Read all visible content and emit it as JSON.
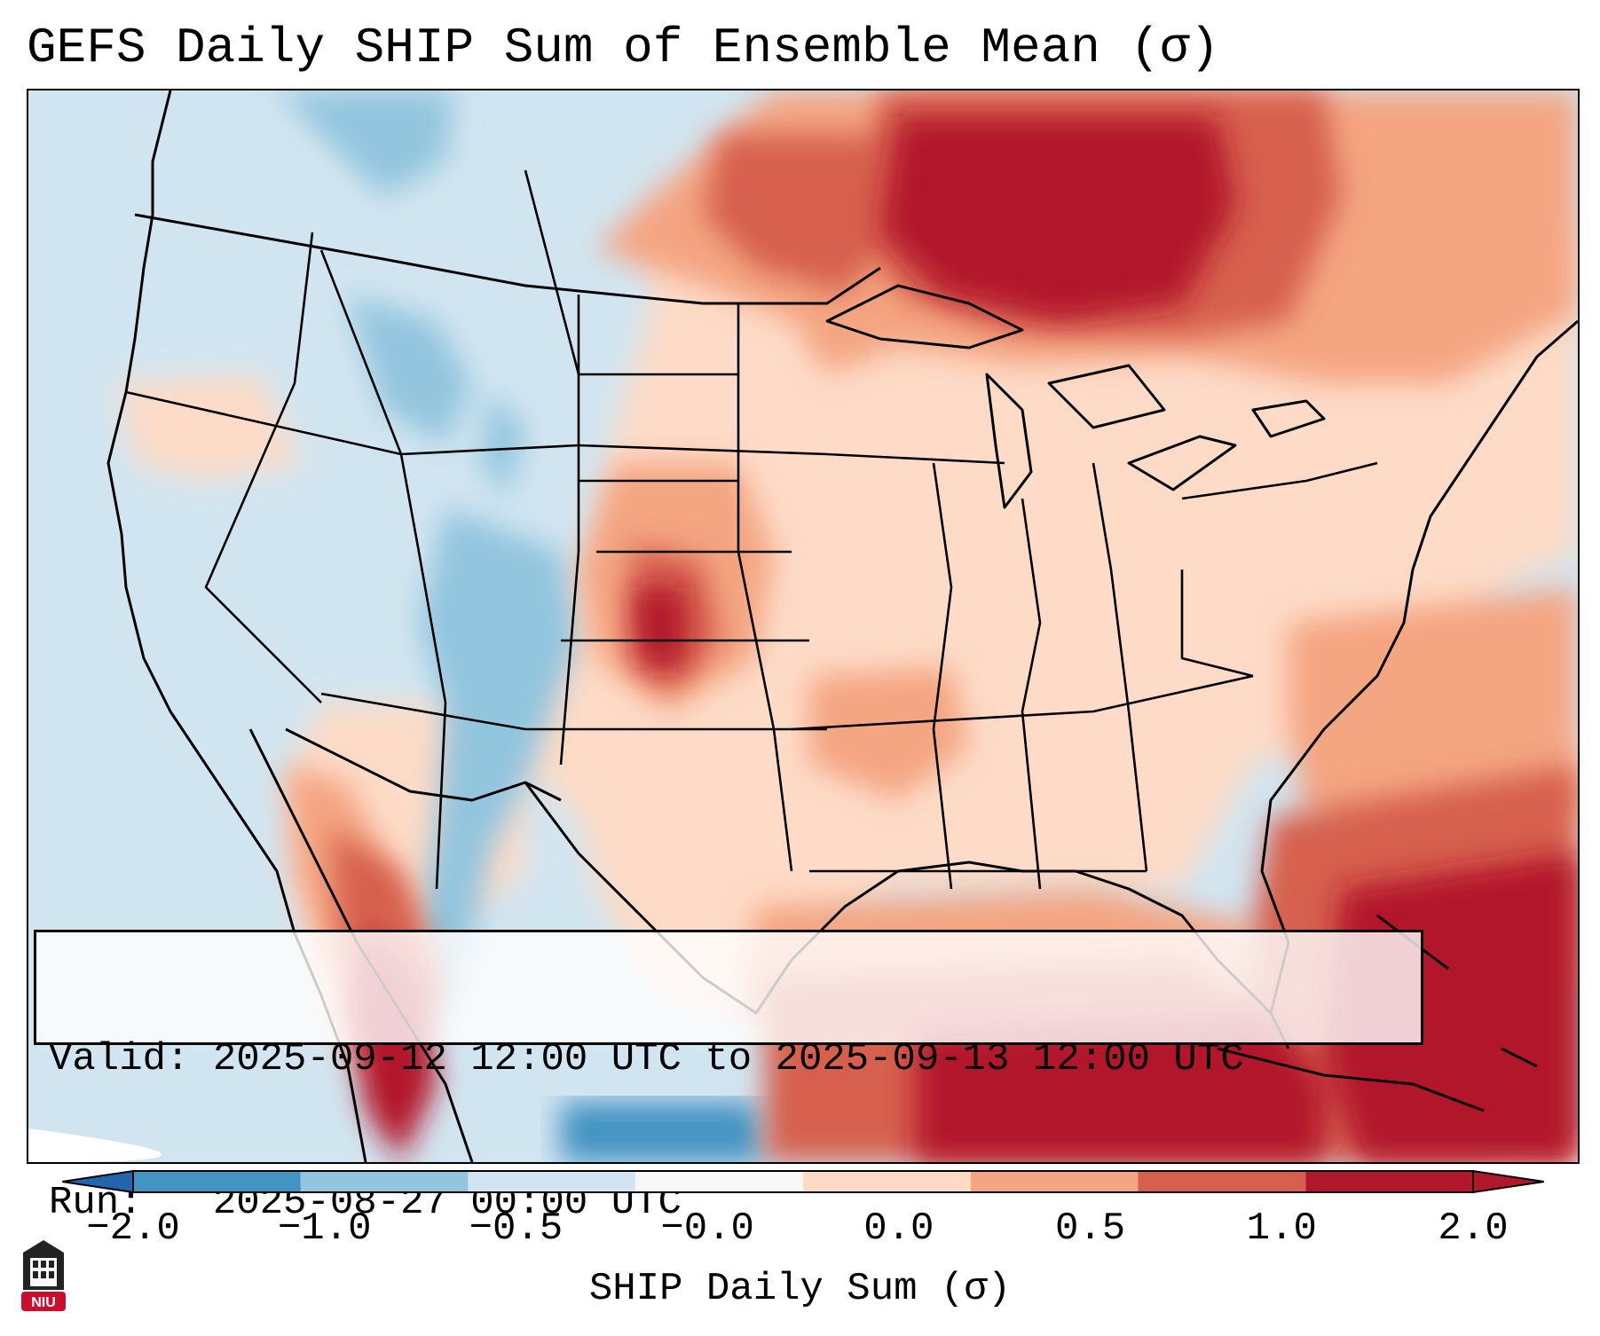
{
  "title": "GEFS Daily SHIP Sum of Ensemble Mean (σ)",
  "info": {
    "valid_line": "Valid: 2025-09-12 12:00 UTC to 2025-09-13 12:00 UTC",
    "run_line": "Run:   2025-08-27 00:00 UTC"
  },
  "colorbar": {
    "label": "SHIP Daily Sum (σ)",
    "ticks": [
      "−2.0",
      "−1.0",
      "−0.5",
      "−0.0",
      "0.0",
      "0.5",
      "1.0",
      "2.0"
    ],
    "colors": [
      "#4393c3",
      "#92c5de",
      "#d1e5f0",
      "#f7f7f7",
      "#fddbc7",
      "#f4a582",
      "#d6604d",
      "#b2182b"
    ],
    "under_color": "#2166ac",
    "over_color": "#b2182b"
  },
  "logo": {
    "text": "NIU",
    "color": "#c8102e"
  }
}
